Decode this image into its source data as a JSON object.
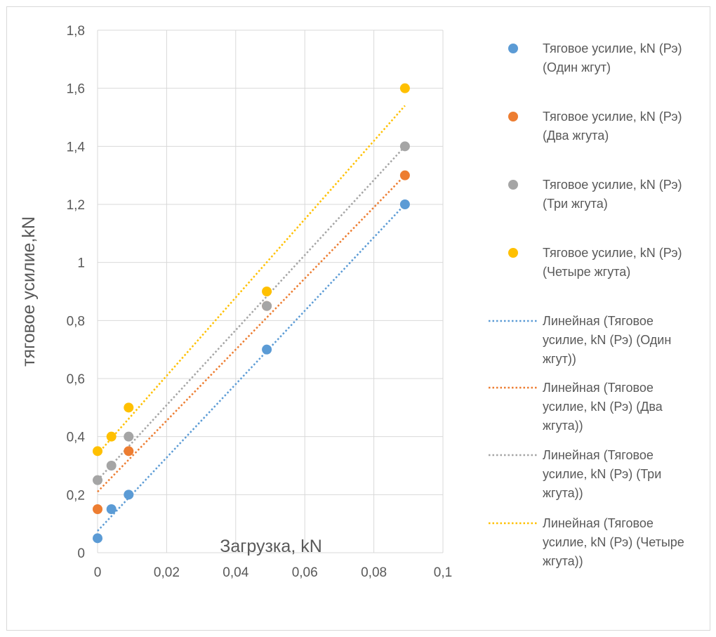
{
  "chart_data": {
    "type": "scatter",
    "title": "",
    "xlabel": "Загрузка, kN",
    "ylabel": "тяговое усилие,kN",
    "xlim": [
      0,
      0.1
    ],
    "ylim": [
      0,
      1.8
    ],
    "x_ticks": [
      "0",
      "0,02",
      "0,04",
      "0,06",
      "0,08",
      "0,1"
    ],
    "y_ticks": [
      "0",
      "0,2",
      "0,4",
      "0,6",
      "0,8",
      "1",
      "1,2",
      "1,4",
      "1,6",
      "1,8"
    ],
    "grid": true,
    "legend_position": "right",
    "series": [
      {
        "name": "Тяговое усилие, kN (Рэ) (Один жгут)",
        "legend_lines": [
          "Тяговое усилие, kN (Рэ)",
          "(Один жгут)"
        ],
        "color": "#5b9bd5",
        "x": [
          0,
          0.004,
          0.009,
          0.049,
          0.089
        ],
        "y": [
          0.05,
          0.15,
          0.2,
          0.7,
          1.2
        ],
        "trendline": {
          "name": "Линейная (Тяговое усилие, kN (Рэ) (Один жгут))",
          "legend_lines": [
            "Линейная (Тяговое",
            "усилие, kN (Рэ) (Один",
            "жгут))"
          ],
          "x": [
            0,
            0.089
          ],
          "y": [
            0.075,
            1.2
          ]
        }
      },
      {
        "name": "Тяговое усилие, kN (Рэ) (Два жгута)",
        "legend_lines": [
          "Тяговое усилие, kN (Рэ)",
          "(Два жгута)"
        ],
        "color": "#ed7d31",
        "x": [
          0,
          0.009,
          0.049,
          0.089
        ],
        "y": [
          0.15,
          0.35,
          0.85,
          1.3
        ],
        "trendline": {
          "name": "Линейная (Тяговое усилие, kN (Рэ) (Два жгута))",
          "legend_lines": [
            "Линейная (Тяговое",
            "усилие, kN (Рэ) (Два",
            "жгута))"
          ],
          "x": [
            0,
            0.089
          ],
          "y": [
            0.21,
            1.3
          ]
        }
      },
      {
        "name": "Тяговое усилие, kN (Рэ) (Три жгута)",
        "legend_lines": [
          "Тяговое усилие, kN (Рэ)",
          "(Три жгута)"
        ],
        "color": "#a5a5a5",
        "x": [
          0,
          0.004,
          0.009,
          0.049,
          0.089
        ],
        "y": [
          0.25,
          0.3,
          0.4,
          0.85,
          1.4
        ],
        "trendline": {
          "name": "Линейная (Тяговое усилие, kN (Рэ) (Три жгута))",
          "legend_lines": [
            "Линейная (Тяговое",
            "усилие, kN (Рэ) (Три",
            "жгута))"
          ],
          "x": [
            0,
            0.089
          ],
          "y": [
            0.25,
            1.4
          ]
        }
      },
      {
        "name": "Тяговое усилие, kN (Рэ) (Четыре жгута)",
        "legend_lines": [
          "Тяговое усилие, kN (Рэ)",
          "(Четыре жгута)"
        ],
        "color": "#ffc000",
        "x": [
          0,
          0.004,
          0.009,
          0.049,
          0.089
        ],
        "y": [
          0.35,
          0.4,
          0.5,
          0.9,
          1.6
        ],
        "trendline": {
          "name": "Линейная (Тяговое усилие, kN (Рэ) (Четыре жгута))",
          "legend_lines": [
            "Линейная (Тяговое",
            "усилие, kN (Рэ) (Четыре",
            "жгута))"
          ],
          "x": [
            0,
            0.089
          ],
          "y": [
            0.34,
            1.54
          ]
        }
      }
    ]
  }
}
